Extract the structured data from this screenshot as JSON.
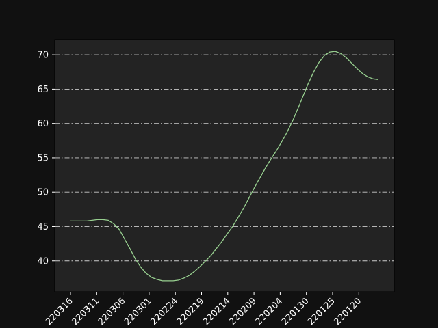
{
  "colors": {
    "page_background": "#111111",
    "plot_background": "#232323",
    "axes_edge": "#000000",
    "grid": "#cccccc",
    "series_line": "#98d090",
    "tick_text": "#ffffff"
  },
  "chart_data": {
    "type": "line",
    "title": "",
    "xlabel": "",
    "ylabel": "",
    "grid": "horizontal dash-dot",
    "legend": "none",
    "ylim": [
      35.5,
      72.2
    ],
    "yticks": [
      40,
      45,
      50,
      55,
      60,
      65,
      70
    ],
    "ytick_labels": [
      "40",
      "45",
      "50",
      "55",
      "60",
      "65",
      "70"
    ],
    "xticks": [
      "220316",
      "220311",
      "220306",
      "220301",
      "220224",
      "220219",
      "220214",
      "220209",
      "220204",
      "220130",
      "220125",
      "220120"
    ],
    "x_order": "descending dates, left to right",
    "x": [
      "220316",
      "220315",
      "220314",
      "220313",
      "220312",
      "220311",
      "220310",
      "220309",
      "220308",
      "220307",
      "220306",
      "220305",
      "220304",
      "220303",
      "220302",
      "220301",
      "220228",
      "220227",
      "220226",
      "220225",
      "220224",
      "220223",
      "220222",
      "220221",
      "220220",
      "220219",
      "220218",
      "220217",
      "220216",
      "220215",
      "220214",
      "220213",
      "220212",
      "220211",
      "220210",
      "220209",
      "220208",
      "220207",
      "220206",
      "220205",
      "220204",
      "220203",
      "220202",
      "220201",
      "220131",
      "220130",
      "220129",
      "220128",
      "220127",
      "220126",
      "220125",
      "220124",
      "220123",
      "220122",
      "220121",
      "220120",
      "220119",
      "220118"
    ],
    "series": [
      {
        "values": [
          45.8,
          45.8,
          45.8,
          45.8,
          45.9,
          46.0,
          46.0,
          45.9,
          45.4,
          44.6,
          43.2,
          41.8,
          40.3,
          39.1,
          38.2,
          37.6,
          37.3,
          37.1,
          37.1,
          37.1,
          37.2,
          37.5,
          37.9,
          38.5,
          39.2,
          40.0,
          40.8,
          41.8,
          42.8,
          43.9,
          45.0,
          46.3,
          47.6,
          49.1,
          50.6,
          52.0,
          53.4,
          54.7,
          55.9,
          57.2,
          58.6,
          60.2,
          62.0,
          63.9,
          65.8,
          67.5,
          68.9,
          69.9,
          70.4,
          70.5,
          70.2,
          69.6,
          68.8,
          68.0,
          67.3,
          66.8,
          66.5,
          66.4
        ]
      }
    ]
  }
}
